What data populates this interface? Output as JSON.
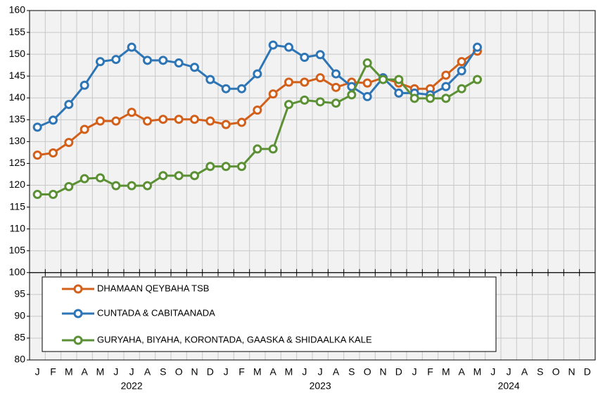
{
  "chart_data": {
    "type": "line",
    "categories": [
      "J",
      "F",
      "M",
      "A",
      "M",
      "J",
      "J",
      "A",
      "S",
      "O",
      "N",
      "D",
      "J",
      "F",
      "M",
      "A",
      "M",
      "J",
      "J",
      "A",
      "S",
      "O",
      "N",
      "D",
      "J",
      "F",
      "M",
      "A",
      "M",
      "J",
      "J",
      "A",
      "S",
      "O",
      "N",
      "D"
    ],
    "years": [
      "2022",
      "2023",
      "2024"
    ],
    "ylim": [
      80,
      160
    ],
    "yticks": [
      80,
      85,
      90,
      95,
      100,
      105,
      110,
      115,
      120,
      125,
      130,
      135,
      140,
      145,
      150,
      155,
      160
    ],
    "axis_line": 100,
    "grid": true,
    "series": [
      {
        "name": "DHAMAAN QEYBAHA  TSB",
        "color": "#d2601a",
        "values": [
          126.9,
          127.4,
          129.8,
          132.8,
          134.7,
          134.7,
          136.7,
          134.7,
          135.1,
          135.1,
          135.1,
          134.7,
          133.9,
          134.4,
          137.2,
          140.9,
          143.6,
          143.6,
          144.6,
          142.4,
          143.6,
          143.4,
          144.6,
          143.4,
          142.1,
          142.1,
          145.2,
          148.3,
          150.7,
          null,
          null,
          null,
          null,
          null,
          null,
          null
        ]
      },
      {
        "name": "CUNTADA & CABITAANADA",
        "color": "#2e75b6",
        "values": [
          133.3,
          134.9,
          138.5,
          142.9,
          148.3,
          148.8,
          151.6,
          148.6,
          148.6,
          148.0,
          147.0,
          144.2,
          142.1,
          142.1,
          145.5,
          152.1,
          151.6,
          149.3,
          149.9,
          145.5,
          142.6,
          140.3,
          144.6,
          141.1,
          141.1,
          140.7,
          142.6,
          146.2,
          151.6,
          null,
          null,
          null,
          null,
          null,
          null,
          null
        ]
      },
      {
        "name": "GURYAHA, BIYAHA, KORONTADA, GAASKA & SHIDAALKA KALE",
        "color": "#5b9034",
        "values": [
          117.9,
          117.9,
          119.7,
          121.5,
          121.7,
          119.9,
          119.9,
          119.9,
          122.2,
          122.2,
          122.2,
          124.3,
          124.3,
          124.3,
          128.3,
          128.3,
          138.5,
          139.5,
          139.1,
          138.8,
          140.7,
          148.0,
          144.2,
          144.2,
          139.9,
          139.9,
          139.9,
          142.1,
          144.2,
          null,
          null,
          null,
          null,
          null,
          null,
          null
        ]
      }
    ]
  }
}
